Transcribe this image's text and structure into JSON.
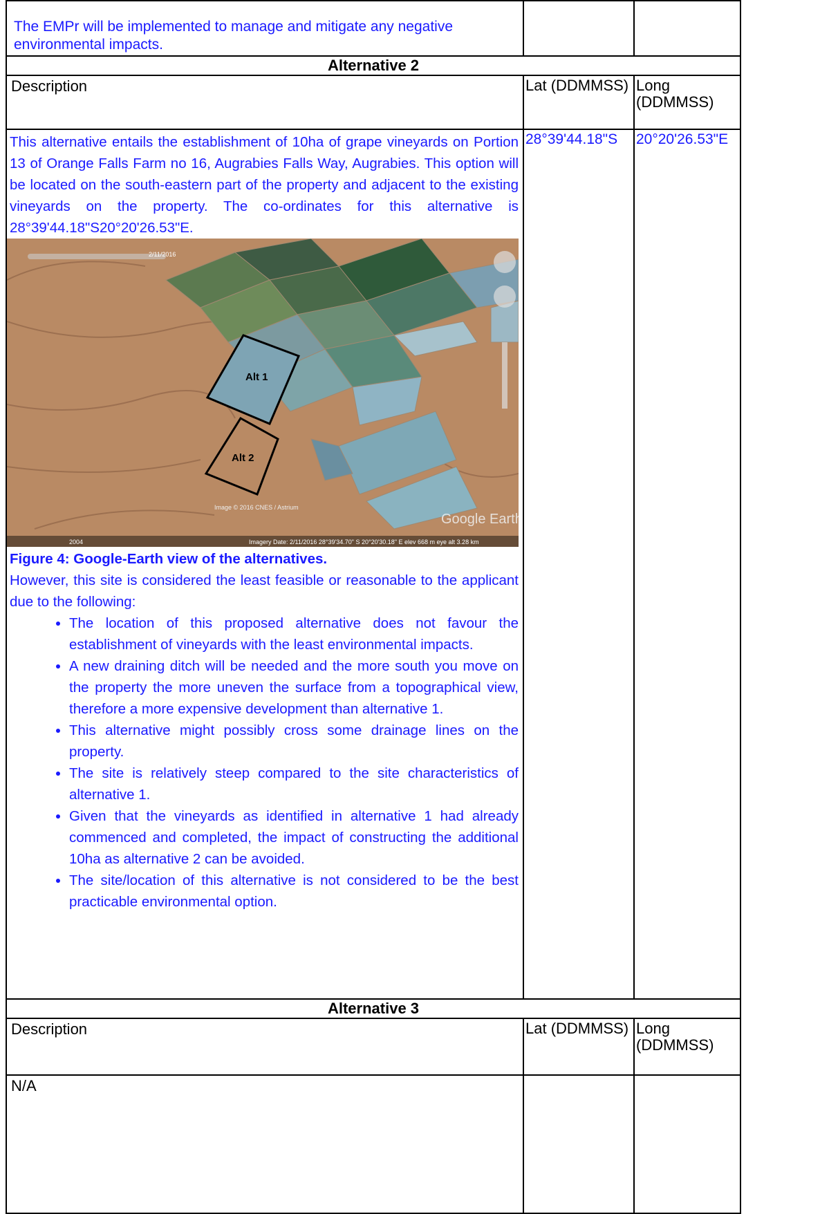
{
  "intro": {
    "text": "The EMPr will be implemented to manage and mitigate any negative environmental impacts."
  },
  "alternative_2": {
    "heading": "Alternative 2",
    "col_description": "Description",
    "col_lat": "Lat (DDMMSS)",
    "col_long": "Long (DDMMSS)",
    "description": "This alternative entails the establishment of 10ha of grape vineyards on Portion 13 of Orange Falls Farm no 16, Augrabies Falls Way, Augrabies. This option will be located on the south-eastern part of the property and adjacent to the existing vineyards on the property. The co-ordinates for this alternative is 28°39'44.18\"S20°20'26.53\"E.",
    "lat": "28°39'44.18\"S",
    "long": "20°20'26.53\"E",
    "figure": {
      "label_alt_1": "Alt 1",
      "label_alt_2": "Alt 2",
      "date_stamp": "2/11/2016",
      "copyright": "Image © 2016 CNES / Astrium",
      "brand": "Google Earth",
      "year": "2004",
      "status_bar": "Imagery Date: 2/11/2016   28°39'34.70\" S  20°20'30.18\" E  elev  668 m   eye alt  3.28 km",
      "caption": "Figure 4: Google-Earth view of the alternatives."
    },
    "paragraph": "However, this site is considered the least feasible or reasonable to the applicant due to the following:",
    "bullets": [
      "The location of this proposed alternative does not favour the establishment of vineyards with the least environmental impacts.",
      "A new draining ditch will be needed and the more south you move on the property the more uneven the surface from a topographical view, therefore a more expensive development than alternative 1.",
      "This alternative might possibly cross some drainage lines on the property.",
      "The site is relatively steep compared to the site characteristics of alternative 1.",
      "Given that the vineyards as identified in alternative 1 had already commenced and completed, the impact of constructing the additional 10ha as alternative 2 can be avoided.",
      "The site/location of this alternative is not considered to be the best practicable environmental option."
    ]
  },
  "alternative_3": {
    "heading": "Alternative 3",
    "col_description": "Description",
    "col_lat": "Lat (DDMMSS)",
    "col_long": "Long (DDMMSS)",
    "description": "N/A"
  }
}
